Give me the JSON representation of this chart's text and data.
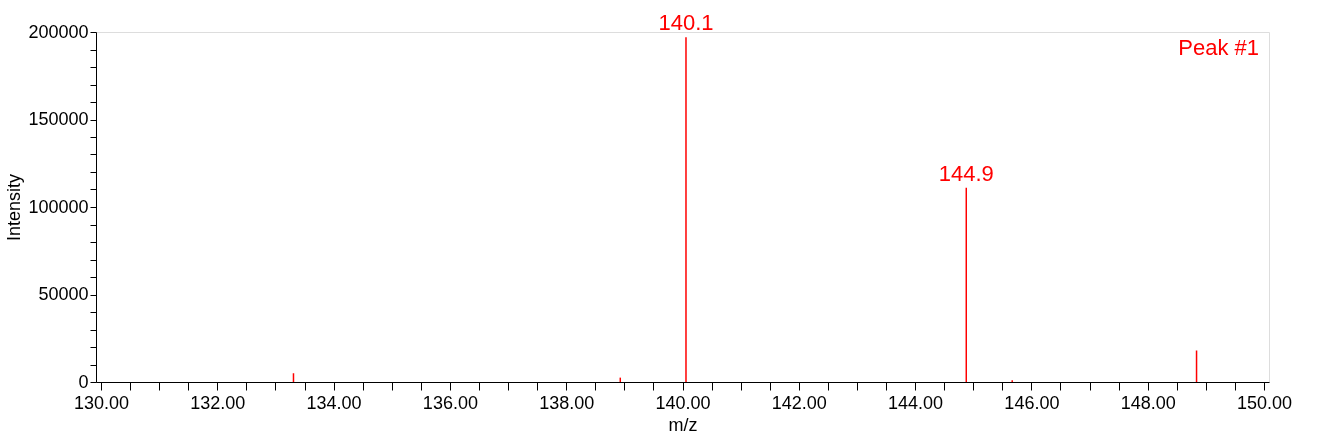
{
  "chart_data": {
    "type": "bar",
    "xlabel": "m/z",
    "ylabel": "Intensity",
    "x": [
      133.31,
      138.93,
      140.06,
      144.88,
      145.67,
      148.84
    ],
    "values": [
      5000,
      2500,
      197000,
      111000,
      1000,
      18000
    ],
    "color": "#ff0000",
    "xlim": [
      130,
      150
    ],
    "xticks": [
      {
        "value": 130,
        "label": "130.00"
      },
      {
        "value": 130.5,
        "label": null
      },
      {
        "value": 131,
        "label": null
      },
      {
        "value": 131.5,
        "label": null
      },
      {
        "value": 132,
        "label": "132.00"
      },
      {
        "value": 132.5,
        "label": null
      },
      {
        "value": 133,
        "label": null
      },
      {
        "value": 133.5,
        "label": null
      },
      {
        "value": 134,
        "label": "134.00"
      },
      {
        "value": 134.5,
        "label": null
      },
      {
        "value": 135,
        "label": null
      },
      {
        "value": 135.5,
        "label": null
      },
      {
        "value": 136,
        "label": "136.00"
      },
      {
        "value": 136.5,
        "label": null
      },
      {
        "value": 137,
        "label": null
      },
      {
        "value": 137.5,
        "label": null
      },
      {
        "value": 138,
        "label": "138.00"
      },
      {
        "value": 138.5,
        "label": null
      },
      {
        "value": 139,
        "label": null
      },
      {
        "value": 139.5,
        "label": null
      },
      {
        "value": 140,
        "label": "140.00"
      },
      {
        "value": 140.5,
        "label": null
      },
      {
        "value": 141,
        "label": null
      },
      {
        "value": 141.5,
        "label": null
      },
      {
        "value": 142,
        "label": "142.00"
      },
      {
        "value": 142.5,
        "label": null
      },
      {
        "value": 143,
        "label": null
      },
      {
        "value": 143.5,
        "label": null
      },
      {
        "value": 144,
        "label": "144.00"
      },
      {
        "value": 144.5,
        "label": null
      },
      {
        "value": 145,
        "label": null
      },
      {
        "value": 145.5,
        "label": null
      },
      {
        "value": 146,
        "label": "146.00"
      },
      {
        "value": 146.5,
        "label": null
      },
      {
        "value": 147,
        "label": null
      },
      {
        "value": 147.5,
        "label": null
      },
      {
        "value": 148,
        "label": "148.00"
      },
      {
        "value": 148.5,
        "label": null
      },
      {
        "value": 149,
        "label": null
      },
      {
        "value": 149.5,
        "label": null
      },
      {
        "value": 150,
        "label": "150.00"
      }
    ],
    "ylim": [
      0,
      200000
    ],
    "yticks": [
      0,
      {
        "value": 10000,
        "label": null
      },
      {
        "value": 20000,
        "label": null
      },
      {
        "value": 30000,
        "label": null
      },
      {
        "value": 40000,
        "label": null
      },
      50000,
      {
        "value": 60000,
        "label": null
      },
      {
        "value": 70000,
        "label": null
      },
      {
        "value": 80000,
        "label": null
      },
      {
        "value": 90000,
        "label": null
      },
      100000,
      {
        "value": 110000,
        "label": null
      },
      {
        "value": 120000,
        "label": null
      },
      {
        "value": 130000,
        "label": null
      },
      {
        "value": 140000,
        "label": null
      },
      150000,
      {
        "value": 160000,
        "label": null
      },
      {
        "value": 170000,
        "label": null
      },
      {
        "value": 180000,
        "label": null
      },
      {
        "value": 190000,
        "label": null
      },
      200000
    ],
    "grid": false,
    "annotations": [
      {
        "text": "140.1",
        "x": 140.06,
        "y": 197000
      },
      {
        "text": "144.9",
        "x": 144.88,
        "y": 111000
      },
      "Peak #1"
    ]
  }
}
